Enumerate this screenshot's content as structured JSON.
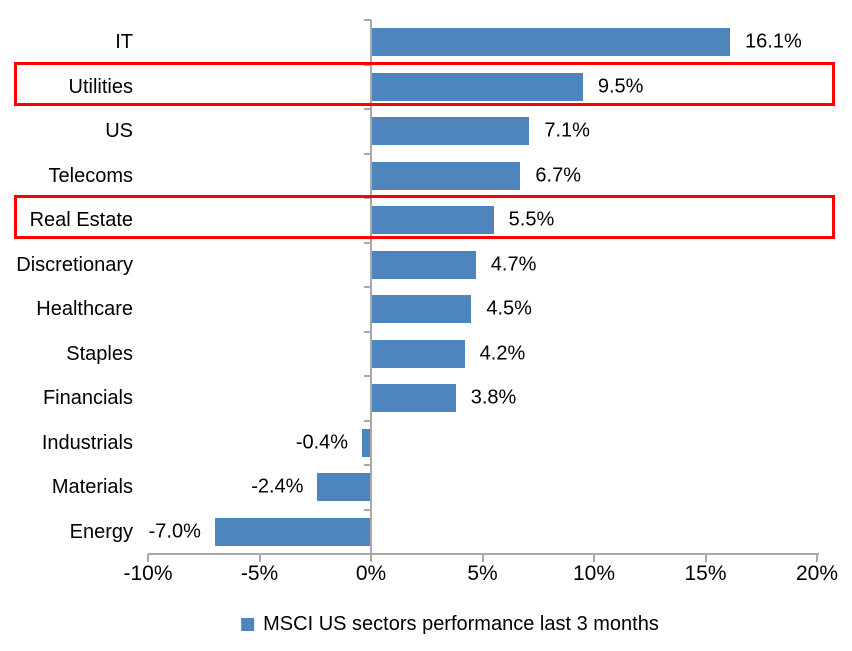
{
  "chart_data": {
    "type": "bar",
    "orientation": "horizontal",
    "title": "",
    "categories": [
      "IT",
      "Utilities",
      "US",
      "Telecoms",
      "Real Estate",
      "Discretionary",
      "Healthcare",
      "Staples",
      "Financials",
      "Industrials",
      "Materials",
      "Energy"
    ],
    "values": [
      16.1,
      9.5,
      7.1,
      6.7,
      5.5,
      4.7,
      4.5,
      4.2,
      3.8,
      -0.4,
      -2.4,
      -7.0
    ],
    "value_labels": [
      "16.1%",
      "9.5%",
      "7.1%",
      "6.7%",
      "5.5%",
      "4.7%",
      "4.5%",
      "4.2%",
      "3.8%",
      "-0.4%",
      "-2.4%",
      "-7.0%"
    ],
    "x_tick_labels": [
      "-10%",
      "-5%",
      "0%",
      "5%",
      "10%",
      "15%",
      "20%"
    ],
    "x_tick_values": [
      -10,
      -5,
      0,
      5,
      10,
      15,
      20
    ],
    "xlim": [
      -10,
      20
    ],
    "grid": false,
    "highlighted_categories": [
      "Utilities",
      "Real Estate"
    ],
    "legend": {
      "position": "bottom",
      "label": "MSCI US sectors performance last 3 months"
    },
    "colors": {
      "bar": "#4E85BC",
      "axis": "#A9A9A9",
      "highlight_box": "#FF0000",
      "text": "#000000",
      "background": "#FFFFFF"
    }
  }
}
